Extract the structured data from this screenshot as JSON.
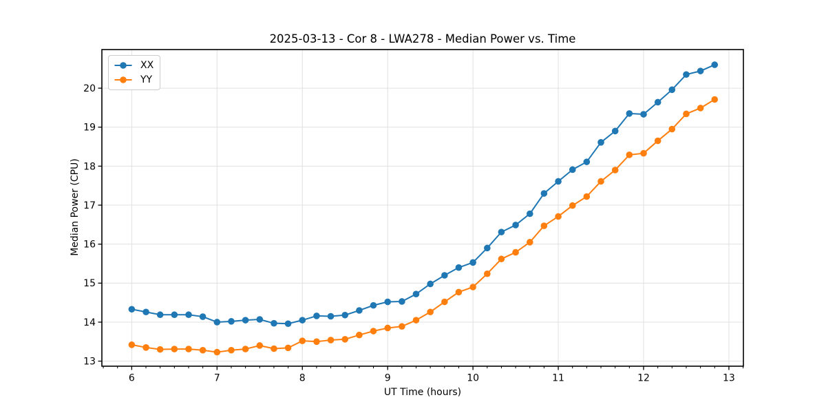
{
  "chart_data": {
    "type": "line",
    "title": "2025-03-13 - Cor 8 - LWA278 - Median Power vs. Time",
    "xlabel": "UT Time (hours)",
    "ylabel": "Median Power (CPU)",
    "xlim": [
      5.65,
      13.17
    ],
    "ylim": [
      12.87,
      20.99
    ],
    "xticks": [
      6,
      7,
      8,
      9,
      10,
      11,
      12,
      13
    ],
    "yticks": [
      13,
      14,
      15,
      16,
      17,
      18,
      19,
      20
    ],
    "x_minor_interval_hours": 0.1667,
    "grid": true,
    "grid_color": "#e0e0e0",
    "legend_position": "upper-left",
    "x": [
      6.0,
      6.167,
      6.333,
      6.5,
      6.667,
      6.833,
      7.0,
      7.167,
      7.333,
      7.5,
      7.667,
      7.833,
      8.0,
      8.167,
      8.333,
      8.5,
      8.667,
      8.833,
      9.0,
      9.167,
      9.333,
      9.5,
      9.667,
      9.833,
      10.0,
      10.167,
      10.333,
      10.5,
      10.667,
      10.833,
      11.0,
      11.167,
      11.333,
      11.5,
      11.667,
      11.833,
      12.0,
      12.167,
      12.333,
      12.5,
      12.667,
      12.833
    ],
    "series": [
      {
        "name": "XX",
        "color": "#1f77b4",
        "values": [
          14.33,
          14.26,
          14.19,
          14.19,
          14.19,
          14.14,
          14.0,
          14.02,
          14.05,
          14.07,
          13.97,
          13.96,
          14.05,
          14.16,
          14.15,
          14.18,
          14.3,
          14.43,
          14.52,
          14.53,
          14.72,
          14.98,
          15.2,
          15.4,
          15.53,
          15.9,
          16.31,
          16.49,
          16.78,
          17.3,
          17.61,
          17.91,
          18.11,
          18.61,
          18.9,
          19.35,
          19.33,
          19.64,
          19.96,
          20.35,
          20.44,
          20.6
        ]
      },
      {
        "name": "YY",
        "color": "#ff7f0e",
        "values": [
          13.42,
          13.35,
          13.3,
          13.31,
          13.31,
          13.28,
          13.23,
          13.28,
          13.31,
          13.4,
          13.32,
          13.34,
          13.52,
          13.5,
          13.54,
          13.56,
          13.67,
          13.77,
          13.85,
          13.89,
          14.05,
          14.26,
          14.52,
          14.77,
          14.9,
          15.24,
          15.62,
          15.79,
          16.05,
          16.47,
          16.71,
          16.99,
          17.22,
          17.61,
          17.9,
          18.29,
          18.33,
          18.65,
          18.95,
          19.34,
          19.49,
          19.71
        ]
      }
    ]
  }
}
